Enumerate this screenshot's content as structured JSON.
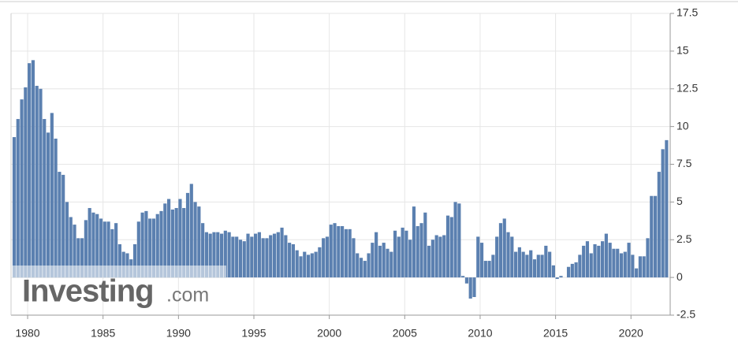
{
  "chart_data": {
    "type": "bar",
    "color": "#5b80b0",
    "watermark": {
      "brand": "Investing",
      "domain": ".com"
    },
    "x": [
      1979,
      1979.25,
      1979.5,
      1979.75,
      1980,
      1980.25,
      1980.5,
      1980.75,
      1981,
      1981.25,
      1981.5,
      1981.75,
      1982,
      1982.25,
      1982.5,
      1982.75,
      1983,
      1983.25,
      1983.5,
      1983.75,
      1984,
      1984.25,
      1984.5,
      1984.75,
      1985,
      1985.25,
      1985.5,
      1985.75,
      1986,
      1986.25,
      1986.5,
      1986.75,
      1987,
      1987.25,
      1987.5,
      1987.75,
      1988,
      1988.25,
      1988.5,
      1988.75,
      1989,
      1989.25,
      1989.5,
      1989.75,
      1990,
      1990.25,
      1990.5,
      1990.75,
      1991,
      1991.25,
      1991.5,
      1991.75,
      1992,
      1992.25,
      1992.5,
      1992.75,
      1993,
      1993.25,
      1993.5,
      1993.75,
      1994,
      1994.25,
      1994.5,
      1994.75,
      1995,
      1995.25,
      1995.5,
      1995.75,
      1996,
      1996.25,
      1996.5,
      1996.75,
      1997,
      1997.25,
      1997.5,
      1997.75,
      1998,
      1998.25,
      1998.5,
      1998.75,
      1999,
      1999.25,
      1999.5,
      1999.75,
      2000,
      2000.25,
      2000.5,
      2000.75,
      2001,
      2001.25,
      2001.5,
      2001.75,
      2002,
      2002.25,
      2002.5,
      2002.75,
      2003,
      2003.25,
      2003.5,
      2003.75,
      2004,
      2004.25,
      2004.5,
      2004.75,
      2005,
      2005.25,
      2005.5,
      2005.75,
      2006,
      2006.25,
      2006.5,
      2006.75,
      2007,
      2007.25,
      2007.5,
      2007.75,
      2008,
      2008.25,
      2008.5,
      2008.75,
      2009,
      2009.25,
      2009.5,
      2009.75,
      2010,
      2010.25,
      2010.5,
      2010.75,
      2011,
      2011.25,
      2011.5,
      2011.75,
      2012,
      2012.25,
      2012.5,
      2012.75,
      2013,
      2013.25,
      2013.5,
      2013.75,
      2014,
      2014.25,
      2014.5,
      2014.75,
      2015,
      2015.25,
      2015.5,
      2015.75,
      2016,
      2016.25,
      2016.5,
      2016.75,
      2017,
      2017.25,
      2017.5,
      2017.75,
      2018,
      2018.25,
      2018.5,
      2018.75,
      2019,
      2019.25,
      2019.5,
      2019.75,
      2020,
      2020.25,
      2020.5,
      2020.75,
      2021,
      2021.25,
      2021.5,
      2021.75,
      2022,
      2022.25
    ],
    "values": [
      9.3,
      10.5,
      11.8,
      12.6,
      14.2,
      14.4,
      12.7,
      12.5,
      10.5,
      9.6,
      10.9,
      9.2,
      7.0,
      6.8,
      5.0,
      4.0,
      3.5,
      2.6,
      2.6,
      3.8,
      4.6,
      4.3,
      4.2,
      3.9,
      3.7,
      3.7,
      3.2,
      3.6,
      2.2,
      1.7,
      1.6,
      1.2,
      2.2,
      3.7,
      4.3,
      4.4,
      3.9,
      3.9,
      4.2,
      4.4,
      4.9,
      5.2,
      4.5,
      4.6,
      5.2,
      4.6,
      5.6,
      6.2,
      5.0,
      4.7,
      3.6,
      3.0,
      2.9,
      3.0,
      3.0,
      2.9,
      3.1,
      3.0,
      2.7,
      2.7,
      2.5,
      2.4,
      2.9,
      2.7,
      2.9,
      3.0,
      2.6,
      2.6,
      2.8,
      2.9,
      3.0,
      3.3,
      2.8,
      2.3,
      2.2,
      1.8,
      1.4,
      1.7,
      1.5,
      1.6,
      1.7,
      2.0,
      2.6,
      2.7,
      3.5,
      3.6,
      3.4,
      3.4,
      3.2,
      3.2,
      2.6,
      1.6,
      1.3,
      1.1,
      1.6,
      2.3,
      3.0,
      2.1,
      2.3,
      1.9,
      1.7,
      3.1,
      2.7,
      3.3,
      3.1,
      2.5,
      4.7,
      3.4,
      3.6,
      4.3,
      2.1,
      2.5,
      2.8,
      2.7,
      2.8,
      4.1,
      4.0,
      5.0,
      4.9,
      0.1,
      -0.4,
      -1.4,
      -1.3,
      2.7,
      2.3,
      1.1,
      1.1,
      1.5,
      2.7,
      3.6,
      3.9,
      3.0,
      2.7,
      1.7,
      2.0,
      1.7,
      1.5,
      1.8,
      1.2,
      1.5,
      1.5,
      2.1,
      1.7,
      0.8,
      -0.1,
      0.1,
      0.0,
      0.7,
      0.9,
      1.0,
      1.5,
      2.1,
      2.4,
      1.6,
      2.2,
      2.1,
      2.4,
      2.9,
      2.3,
      1.9,
      1.9,
      1.6,
      1.7,
      2.3,
      1.5,
      0.6,
      1.4,
      1.4,
      2.6,
      5.4,
      5.4,
      7.0,
      8.5,
      9.1
    ],
    "xlim": [
      1978.9,
      2022.6
    ],
    "xticks": [
      1980,
      1985,
      1990,
      1995,
      2000,
      2005,
      2010,
      2015,
      2020
    ],
    "ylim": [
      -2.5,
      17.5
    ],
    "yticks": [
      -2.5,
      0,
      2.5,
      5,
      7.5,
      10,
      12.5,
      15,
      17.5
    ],
    "grid": true
  }
}
